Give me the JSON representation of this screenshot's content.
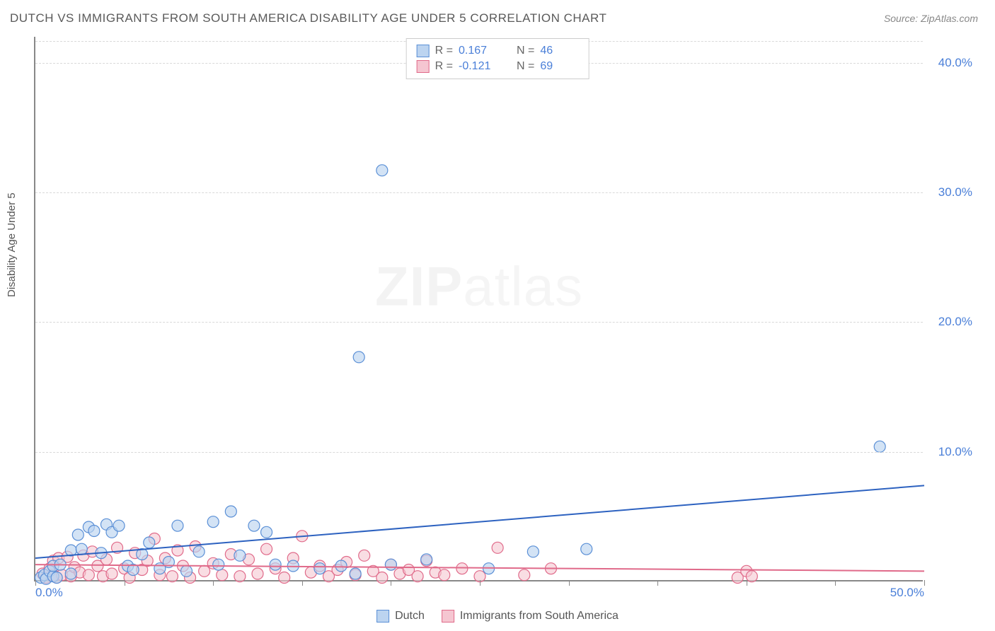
{
  "title": "DUTCH VS IMMIGRANTS FROM SOUTH AMERICA DISABILITY AGE UNDER 5 CORRELATION CHART",
  "source": "Source: ZipAtlas.com",
  "ylabel": "Disability Age Under 5",
  "watermark_bold": "ZIP",
  "watermark_light": "atlas",
  "chart": {
    "type": "scatter",
    "xlim": [
      0,
      50
    ],
    "ylim": [
      0,
      42
    ],
    "x_tick_step": 5,
    "x_tick_labels": {
      "0": "0.0%",
      "50": "50.0%"
    },
    "y_gridlines": [
      10,
      20,
      30,
      40
    ],
    "y_tick_labels": {
      "10": "10.0%",
      "20": "20.0%",
      "30": "30.0%",
      "40": "40.0%"
    },
    "background_color": "#ffffff",
    "grid_color": "#d9d9d9",
    "axis_color": "#888888",
    "tick_label_color": "#4a7fd8",
    "marker_radius": 8,
    "marker_stroke_width": 1.2,
    "line_width": 2,
    "series": [
      {
        "name": "Dutch",
        "fill": "#bcd4f0",
        "stroke": "#5a8fd6",
        "fill_opacity": 0.65,
        "line_color": "#2d62c0",
        "R": "0.167",
        "N": "46",
        "trend": {
          "x1": 0,
          "y1": 1.8,
          "x2": 50,
          "y2": 7.4
        },
        "points": [
          [
            0.3,
            0.3
          ],
          [
            0.5,
            0.5
          ],
          [
            0.6,
            0.2
          ],
          [
            0.8,
            0.8
          ],
          [
            1.0,
            0.4
          ],
          [
            1.0,
            1.2
          ],
          [
            1.2,
            0.3
          ],
          [
            1.4,
            1.3
          ],
          [
            2.0,
            0.6
          ],
          [
            2.0,
            2.4
          ],
          [
            2.4,
            3.6
          ],
          [
            2.6,
            2.5
          ],
          [
            3.0,
            4.2
          ],
          [
            3.3,
            3.9
          ],
          [
            3.7,
            2.2
          ],
          [
            4.0,
            4.4
          ],
          [
            4.3,
            3.8
          ],
          [
            4.7,
            4.3
          ],
          [
            5.2,
            1.2
          ],
          [
            5.5,
            0.9
          ],
          [
            6.0,
            2.1
          ],
          [
            6.4,
            3.0
          ],
          [
            7.0,
            1.0
          ],
          [
            7.5,
            1.5
          ],
          [
            8.0,
            4.3
          ],
          [
            8.5,
            0.8
          ],
          [
            9.2,
            2.3
          ],
          [
            10.0,
            4.6
          ],
          [
            10.3,
            1.3
          ],
          [
            11.0,
            5.4
          ],
          [
            11.5,
            2.0
          ],
          [
            12.3,
            4.3
          ],
          [
            13.0,
            3.8
          ],
          [
            13.5,
            1.3
          ],
          [
            14.5,
            1.2
          ],
          [
            16.0,
            1.0
          ],
          [
            17.2,
            1.2
          ],
          [
            18.0,
            0.6
          ],
          [
            18.2,
            17.3
          ],
          [
            19.5,
            31.7
          ],
          [
            20.0,
            1.3
          ],
          [
            22.0,
            1.7
          ],
          [
            25.5,
            1.0
          ],
          [
            28.0,
            2.3
          ],
          [
            31.0,
            2.5
          ],
          [
            47.5,
            10.4
          ]
        ]
      },
      {
        "name": "Immigrants from South America",
        "fill": "#f5c6d1",
        "stroke": "#e06a8a",
        "fill_opacity": 0.6,
        "line_color": "#e06a8a",
        "R": "-0.121",
        "N": "69",
        "trend": {
          "x1": 0,
          "y1": 1.3,
          "x2": 50,
          "y2": 0.8
        },
        "points": [
          [
            0.4,
            0.6
          ],
          [
            0.6,
            0.3
          ],
          [
            0.8,
            1.0
          ],
          [
            1.0,
            0.5
          ],
          [
            1.0,
            1.6
          ],
          [
            1.2,
            0.3
          ],
          [
            1.3,
            1.8
          ],
          [
            1.5,
            0.5
          ],
          [
            1.8,
            1.9
          ],
          [
            2.0,
            0.4
          ],
          [
            2.2,
            1.1
          ],
          [
            2.5,
            0.7
          ],
          [
            2.7,
            2.0
          ],
          [
            3.0,
            0.5
          ],
          [
            3.2,
            2.3
          ],
          [
            3.5,
            1.2
          ],
          [
            3.8,
            0.4
          ],
          [
            4.0,
            1.7
          ],
          [
            4.3,
            0.6
          ],
          [
            4.6,
            2.6
          ],
          [
            5.0,
            1.0
          ],
          [
            5.3,
            0.3
          ],
          [
            5.6,
            2.2
          ],
          [
            6.0,
            0.9
          ],
          [
            6.3,
            1.6
          ],
          [
            6.7,
            3.3
          ],
          [
            7.0,
            0.5
          ],
          [
            7.3,
            1.8
          ],
          [
            7.7,
            0.4
          ],
          [
            8.0,
            2.4
          ],
          [
            8.3,
            1.2
          ],
          [
            8.7,
            0.3
          ],
          [
            9.0,
            2.7
          ],
          [
            9.5,
            0.8
          ],
          [
            10.0,
            1.4
          ],
          [
            10.5,
            0.5
          ],
          [
            11.0,
            2.1
          ],
          [
            11.5,
            0.4
          ],
          [
            12.0,
            1.7
          ],
          [
            12.5,
            0.6
          ],
          [
            13.0,
            2.5
          ],
          [
            13.5,
            1.0
          ],
          [
            14.0,
            0.3
          ],
          [
            14.5,
            1.8
          ],
          [
            15.0,
            3.5
          ],
          [
            15.5,
            0.7
          ],
          [
            16.0,
            1.2
          ],
          [
            16.5,
            0.4
          ],
          [
            17.0,
            0.9
          ],
          [
            17.5,
            1.5
          ],
          [
            18.0,
            0.5
          ],
          [
            18.5,
            2.0
          ],
          [
            19.0,
            0.8
          ],
          [
            19.5,
            0.3
          ],
          [
            20.0,
            1.3
          ],
          [
            20.5,
            0.6
          ],
          [
            21.0,
            0.9
          ],
          [
            21.5,
            0.4
          ],
          [
            22.0,
            1.6
          ],
          [
            22.5,
            0.7
          ],
          [
            23.0,
            0.5
          ],
          [
            24.0,
            1.0
          ],
          [
            25.0,
            0.4
          ],
          [
            26.0,
            2.6
          ],
          [
            27.5,
            0.5
          ],
          [
            29.0,
            1.0
          ],
          [
            39.5,
            0.3
          ],
          [
            40.0,
            0.8
          ],
          [
            40.3,
            0.4
          ]
        ]
      }
    ]
  },
  "legend_bottom": [
    {
      "label": "Dutch",
      "fill": "#bcd4f0",
      "stroke": "#5a8fd6"
    },
    {
      "label": "Immigrants from South America",
      "fill": "#f5c6d1",
      "stroke": "#e06a8a"
    }
  ],
  "legend_top_labels": {
    "R": "R =",
    "N": "N ="
  }
}
